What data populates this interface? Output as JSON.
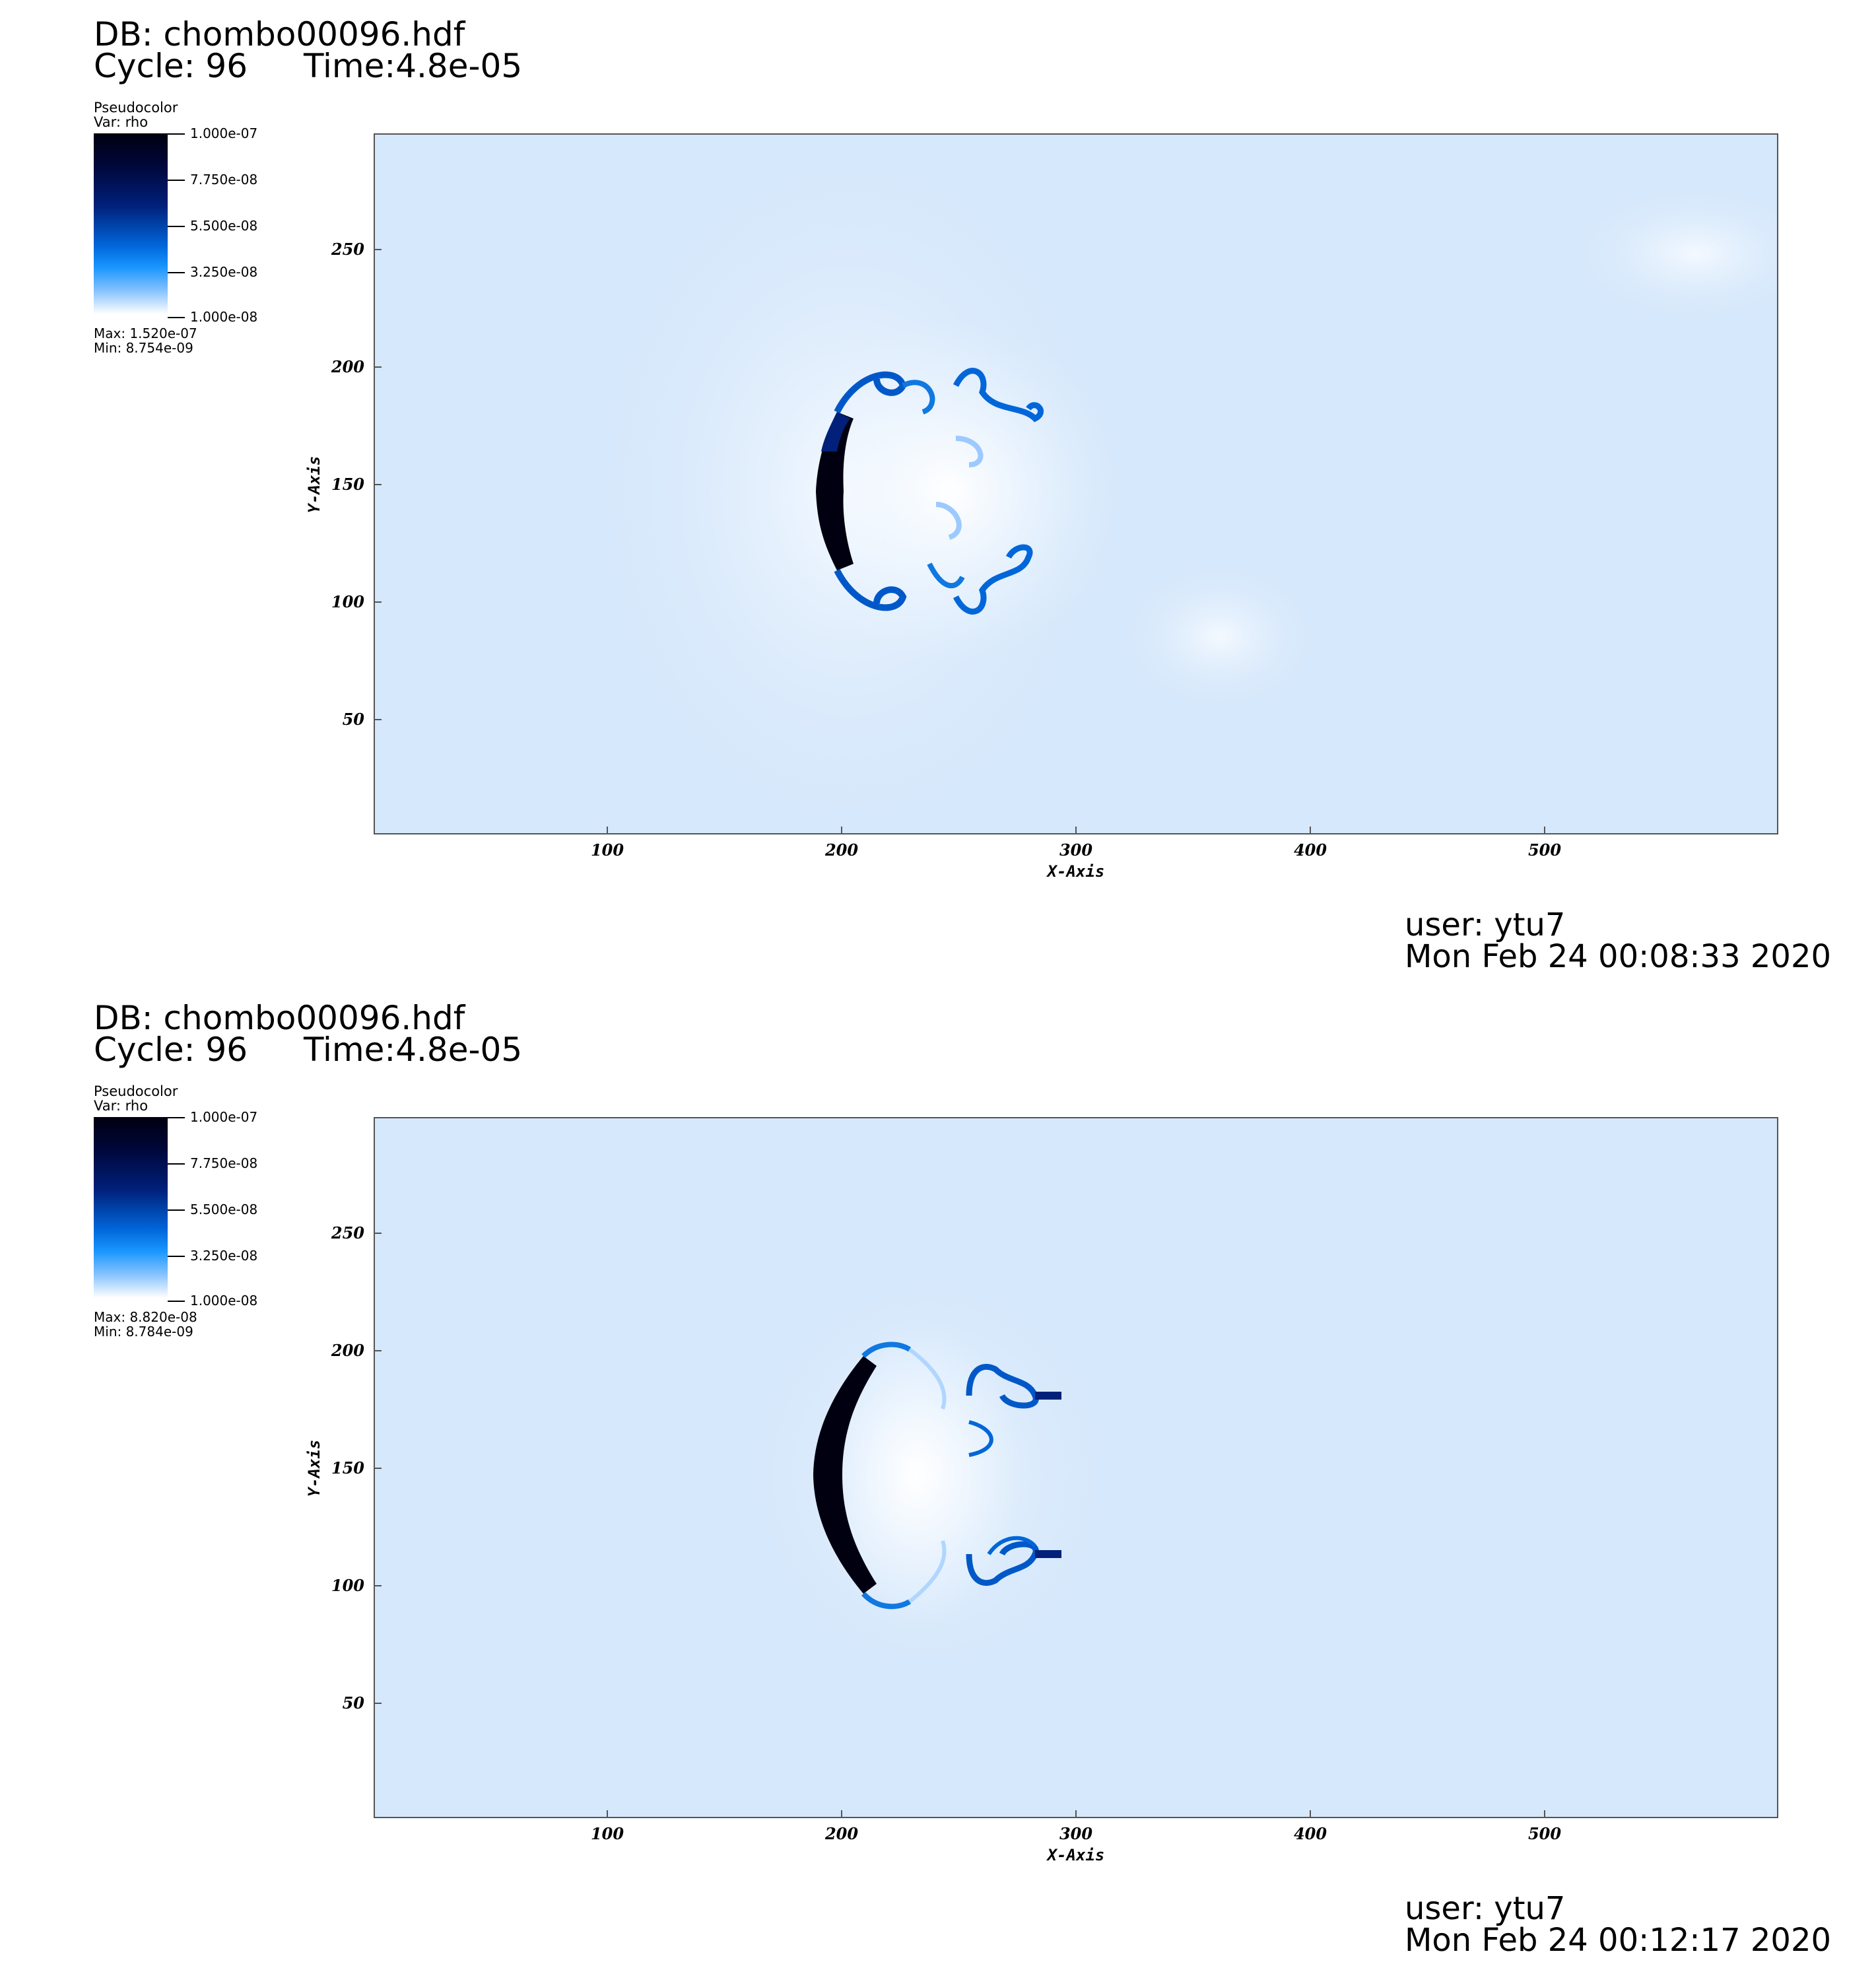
{
  "panels": [
    {
      "header": {
        "db": "DB: chombo00096.hdf",
        "cycle": "Cycle: 96",
        "time": "Time:4.8e-05"
      },
      "legend": {
        "plot_type": "Pseudocolor",
        "var": "Var: rho",
        "ticks": [
          "1.000e-07",
          "7.750e-08",
          "5.500e-08",
          "3.250e-08",
          "1.000e-08"
        ],
        "max": "Max:  1.520e-07",
        "min": "Min:  8.754e-09",
        "colormap": [
          "#ffffff",
          "#1896ff",
          "#0066d9",
          "#00207a",
          "#000010"
        ]
      },
      "x_axis": {
        "title": "X-Axis",
        "ticks": [
          "100",
          "200",
          "300",
          "400",
          "500"
        ]
      },
      "y_axis": {
        "title": "Y-Axis",
        "ticks": [
          "250",
          "200",
          "150",
          "100",
          "50"
        ]
      },
      "footer": {
        "user": "user: ytu7",
        "date": "Mon Feb 24 00:08:33 2020"
      }
    },
    {
      "header": {
        "db": "DB: chombo00096.hdf",
        "cycle": "Cycle: 96",
        "time": "Time:4.8e-05"
      },
      "legend": {
        "plot_type": "Pseudocolor",
        "var": "Var: rho",
        "ticks": [
          "1.000e-07",
          "7.750e-08",
          "5.500e-08",
          "3.250e-08",
          "1.000e-08"
        ],
        "max": "Max:  8.820e-08",
        "min": "Min:  8.784e-09",
        "colormap": [
          "#ffffff",
          "#1896ff",
          "#0066d9",
          "#00207a",
          "#000010"
        ]
      },
      "x_axis": {
        "title": "X-Axis",
        "ticks": [
          "100",
          "200",
          "300",
          "400",
          "500"
        ]
      },
      "y_axis": {
        "title": "Y-Axis",
        "ticks": [
          "250",
          "200",
          "150",
          "100",
          "50"
        ]
      },
      "footer": {
        "user": "user: ytu7",
        "date": "Mon Feb 24 00:12:17 2020"
      }
    }
  ]
}
